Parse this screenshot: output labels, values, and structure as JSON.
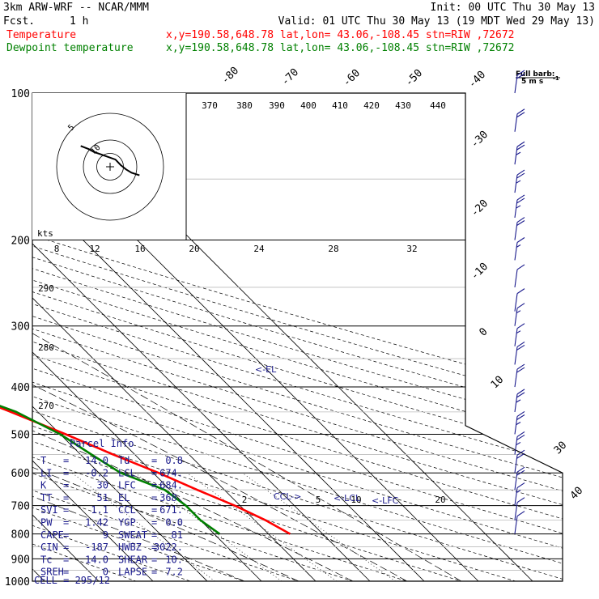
{
  "header": {
    "title": "3km ARW-WRF -- NCAR/MMM",
    "init": "Init: 00 UTC Thu 30 May 13",
    "fcst_label": "Fcst.",
    "fcst_value": "1 h",
    "valid": "Valid: 01 UTC Thu 30 May 13 (19 MDT Wed 29 May 13)",
    "temp_label": "Temperature",
    "temp_loc": "x,y=190.58,648.78   lat,lon= 43.06,-108.45   stn=RIW ,72672",
    "dew_label": "Dewpoint temperature",
    "dew_loc": "x,y=190.58,648.78   lat,lon= 43.06,-108.45   stn=RIW ,72672",
    "temp_color": "#ff0000",
    "dew_color": "#008000"
  },
  "barb_legend": {
    "line1": "Full barb:",
    "line2": "5 m s",
    "sup": "-1"
  },
  "parcel_info": {
    "title": "Parcel Info",
    "rows": [
      {
        "k1": "T",
        "v1": "14.0",
        "k2": "Td",
        "v2": "0.8"
      },
      {
        "k1": "LI",
        "v1": "-0.2",
        "k2": "LCL",
        "v2": "674."
      },
      {
        "k1": "K",
        "v1": "30",
        "k2": "LFC",
        "v2": "684."
      },
      {
        "k1": "TT",
        "v1": "51",
        "k2": "EL",
        "v2": "368."
      },
      {
        "k1": "SVI",
        "v1": "1.1",
        "k2": "CCL",
        "v2": "671."
      },
      {
        "k1": "PW",
        "v1": "1.42",
        "k2": "YGP",
        "v2": "0.0"
      },
      {
        "k1": "CAPE",
        "v1": "9",
        "k2": "SWEAT",
        "v2": "81"
      },
      {
        "k1": "CIN",
        "v1": "-187",
        "k2": "HWBZ",
        "v2": "3022."
      },
      {
        "k1": "Tc",
        "v1": "14.0",
        "k2": "SHEAR",
        "v2": "10."
      },
      {
        "k1": "SREH",
        "v1": "0",
        "k2": "LAPSE",
        "v2": "7.2"
      }
    ],
    "cell": "CELL = 295/12"
  },
  "hodograph": {
    "unit_label": "kts",
    "ring_labels": [
      "5",
      "10"
    ],
    "speed_ticks": [
      "8",
      "12",
      "16",
      "20",
      "24",
      "28",
      "32"
    ],
    "points_uv_kts": [
      [
        -11,
        7.8
      ],
      [
        -8,
        6.6
      ],
      [
        -6,
        5.5
      ],
      [
        -3,
        4.5
      ],
      [
        2,
        2.7
      ],
      [
        4,
        0.6
      ],
      [
        6,
        -1
      ],
      [
        8,
        -2.2
      ],
      [
        11,
        -3.2
      ]
    ]
  },
  "annotations": {
    "el": "<-EL",
    "ccl": "CCL->",
    "lcl": "<-LCL",
    "lfc": "<-LFC"
  },
  "chart_data": {
    "type": "line",
    "chart_kind": "skew-T log-p sounding",
    "pressure_levels_hPa": [
      100,
      200,
      300,
      400,
      500,
      600,
      700,
      800,
      900,
      1000
    ],
    "y_scale": "log-pressure",
    "isotherms_C": [
      -80,
      -70,
      -60,
      -50,
      -40,
      -30,
      -20,
      -10,
      0,
      10,
      20,
      30,
      40
    ],
    "isotherm_labels_shown": [
      "-80",
      "-70",
      "-60",
      "-50",
      "-40",
      "-30",
      "-20",
      "-10",
      "0",
      "10",
      "30",
      "40"
    ],
    "dry_adiabat_labels_K": [
      "370",
      "380",
      "390",
      "400",
      "410",
      "420",
      "430",
      "440",
      "290",
      "280",
      "270"
    ],
    "mixing_ratio_labels": [
      "2",
      "5",
      "10",
      "20"
    ],
    "series": [
      {
        "name": "Temperature",
        "color": "#ff0000",
        "p": [
          100,
          150,
          200,
          250,
          300,
          350,
          400,
          450,
          500,
          550,
          600,
          650,
          700,
          750,
          800
        ],
        "T": [
          -57,
          -53,
          -48,
          -44,
          -40,
          -32,
          -22,
          -15,
          -9,
          -4,
          1,
          5,
          9,
          12,
          14
        ]
      },
      {
        "name": "Dewpoint temperature",
        "color": "#008000",
        "p": [
          100,
          130,
          160,
          200,
          220,
          240,
          260,
          290,
          320,
          370,
          400,
          450,
          500,
          550,
          600,
          650,
          700,
          750,
          800
        ],
        "T": [
          -75,
          -71,
          -68,
          -63,
          -63,
          -66,
          -60,
          -50,
          -43,
          -30,
          -22,
          -14,
          -10,
          -8,
          -6,
          -1,
          0,
          0,
          1
        ]
      }
    ],
    "wind_barbs": {
      "p": [
        100,
        120,
        140,
        160,
        180,
        200,
        220,
        250,
        280,
        300,
        330,
        360,
        400,
        450,
        500,
        550,
        600,
        650,
        700,
        750,
        800
      ],
      "speed_kts": [
        20,
        20,
        25,
        25,
        25,
        20,
        15,
        10,
        10,
        15,
        15,
        20,
        20,
        25,
        25,
        25,
        20,
        20,
        15,
        10,
        10
      ],
      "dir_deg": [
        300,
        295,
        295,
        290,
        290,
        290,
        280,
        270,
        250,
        230,
        220,
        225,
        240,
        250,
        255,
        260,
        260,
        255,
        250,
        240,
        230
      ]
    },
    "parcel_levels_hPa": {
      "EL": 368,
      "CCL": 671,
      "LCL": 674,
      "LFC": 684
    }
  }
}
